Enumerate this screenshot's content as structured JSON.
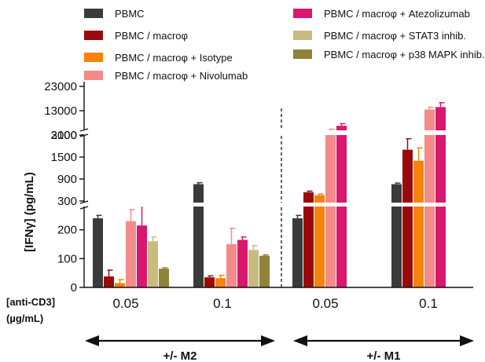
{
  "chart_data": {
    "type": "bar",
    "ylabel": "[IFNγ] (pg/mL)",
    "anti_cd3_label": [
      "[anti-CD3]",
      "(µg/mL)"
    ],
    "y_axis": {
      "broken": true,
      "segments": [
        {
          "range": [
            0,
            300
          ],
          "ticks": [
            0,
            100,
            200,
            300
          ],
          "tick_labels": [
            "0",
            "100",
            "200",
            "300"
          ]
        },
        {
          "range": [
            300,
            2100
          ],
          "ticks": [
            900,
            1500,
            2100
          ],
          "tick_labels": [
            "900",
            "1500",
            "2100"
          ]
        },
        {
          "range": [
            3000,
            23000
          ],
          "ticks": [
            3000,
            13000,
            23000
          ],
          "tick_labels": [
            "3000",
            "13000",
            "23000"
          ]
        }
      ]
    },
    "groups": [
      {
        "label": "0.05",
        "panel": "M2"
      },
      {
        "label": "0.1",
        "panel": "M2"
      },
      {
        "label": "0.05",
        "panel": "M1"
      },
      {
        "label": "0.1",
        "panel": "M1"
      }
    ],
    "panels": [
      {
        "id": "M2",
        "label": "+/- M2"
      },
      {
        "id": "M1",
        "label": "+/- M1"
      }
    ],
    "series": [
      {
        "name": "PBMC",
        "color": "#3a3a3a",
        "values": [
          240,
          760,
          240,
          760
        ],
        "errors": [
          10,
          40,
          10,
          30
        ]
      },
      {
        "name": "PBMC / macroφ",
        "color": "#9b0a0a",
        "values": [
          38,
          35,
          540,
          1700
        ],
        "errors": [
          22,
          5,
          30,
          300
        ]
      },
      {
        "name": "PBMC / macroφ + Isotype",
        "color": "#f7830a",
        "values": [
          15,
          32,
          460,
          1400
        ],
        "errors": [
          12,
          10,
          30,
          350
        ]
      },
      {
        "name": "PBMC / macroφ + Nivolumab",
        "color": "#f48a8a",
        "values": [
          230,
          150,
          4500,
          13500
        ],
        "errors": [
          40,
          55,
          900,
          900
        ]
      },
      {
        "name": "PBMC / macroφ + Atezolizumab",
        "color": "#d9176e",
        "values": [
          215,
          165,
          6800,
          14500
        ],
        "errors": [
          70,
          10,
          900,
          1800
        ]
      },
      {
        "name": "PBMC / macroφ + STAT3 inhib.",
        "color": "#c8bb7e",
        "values": [
          160,
          130,
          null,
          null
        ],
        "errors": [
          15,
          15,
          null,
          null
        ]
      },
      {
        "name": "PBMC / macroφ + p38 MAPK inhib.",
        "color": "#8f833c",
        "values": [
          65,
          110,
          null,
          null
        ],
        "errors": [
          3,
          3,
          null,
          null
        ]
      }
    ],
    "legend": {
      "placement": "top",
      "columns": 2
    }
  }
}
